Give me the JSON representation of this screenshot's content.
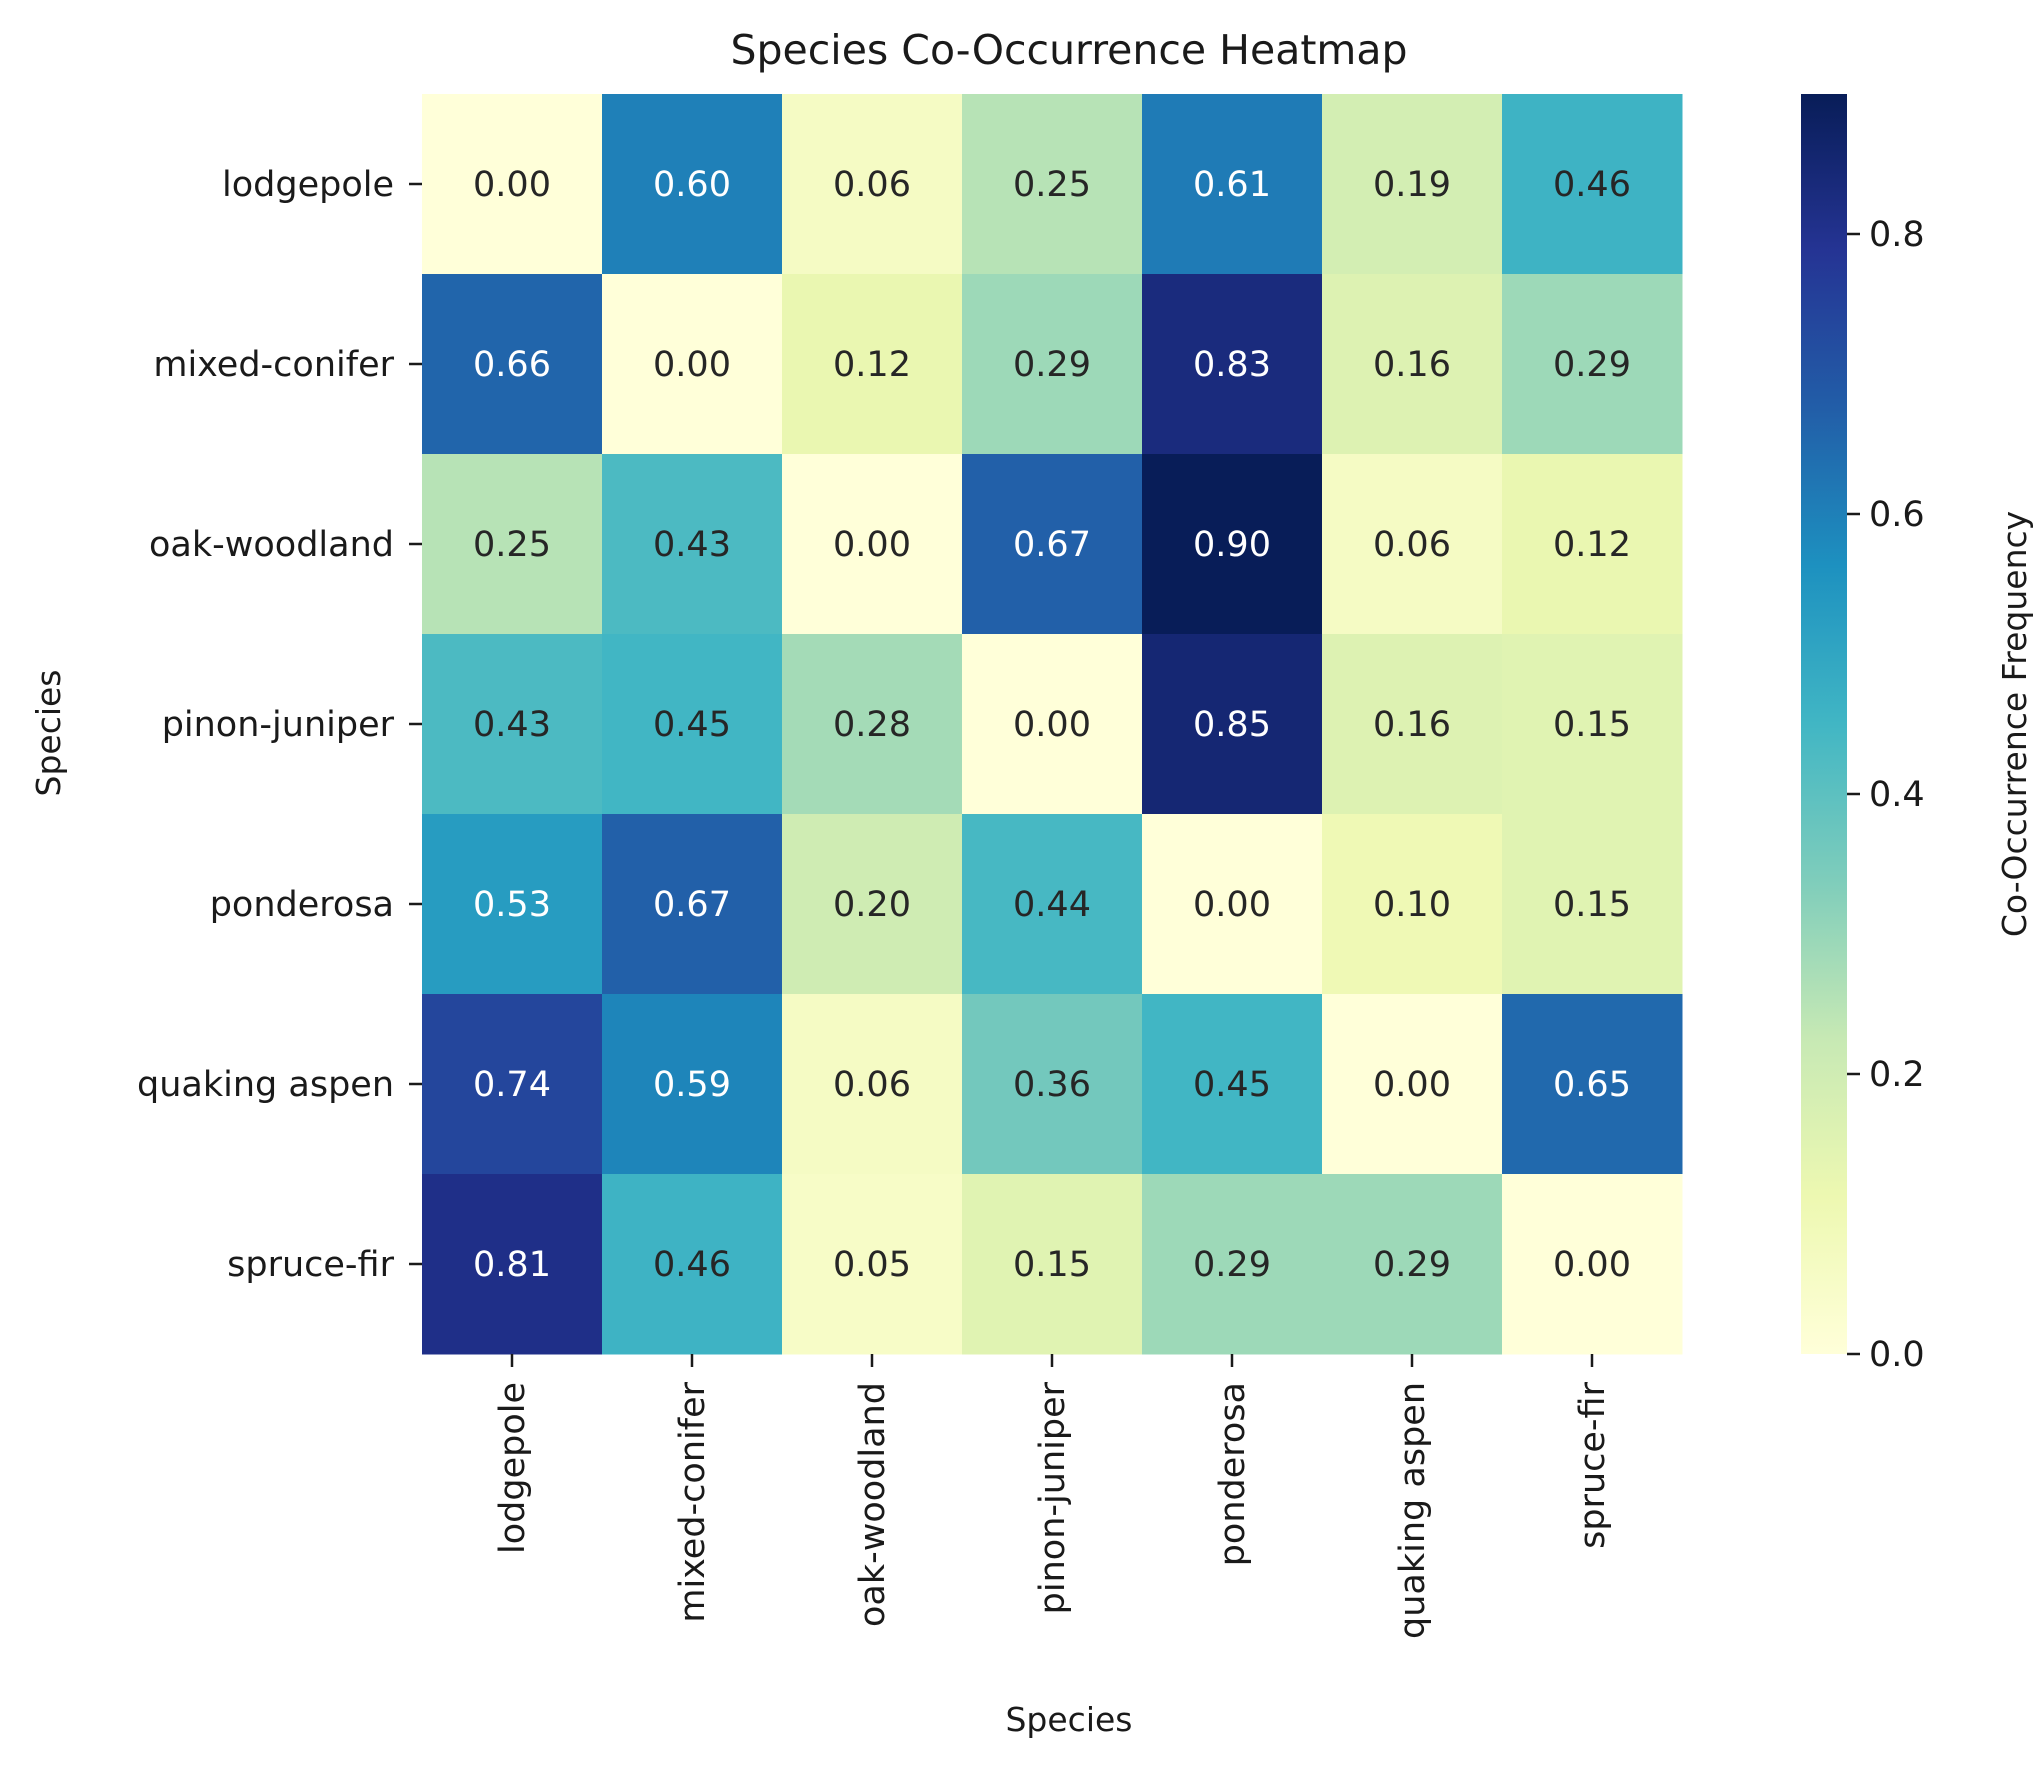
{
  "chart_data": {
    "type": "heatmap",
    "title": "Species Co-Occurrence Heatmap",
    "xlabel": "Species",
    "ylabel": "Species",
    "x_categories": [
      "lodgepole",
      "mixed-conifer",
      "oak-woodland",
      "pinon-juniper",
      "ponderosa",
      "quaking aspen",
      "spruce-fir"
    ],
    "y_categories": [
      "lodgepole",
      "mixed-conifer",
      "oak-woodland",
      "pinon-juniper",
      "ponderosa",
      "quaking aspen",
      "spruce-fir"
    ],
    "values": [
      [
        0.0,
        0.6,
        0.06,
        0.25,
        0.61,
        0.19,
        0.46
      ],
      [
        0.66,
        0.0,
        0.12,
        0.29,
        0.83,
        0.16,
        0.29
      ],
      [
        0.25,
        0.43,
        0.0,
        0.67,
        0.9,
        0.06,
        0.12
      ],
      [
        0.43,
        0.45,
        0.28,
        0.0,
        0.85,
        0.16,
        0.15
      ],
      [
        0.53,
        0.67,
        0.2,
        0.44,
        0.0,
        0.1,
        0.15
      ],
      [
        0.74,
        0.59,
        0.06,
        0.36,
        0.45,
        0.0,
        0.65
      ],
      [
        0.81,
        0.46,
        0.05,
        0.15,
        0.29,
        0.29,
        0.0
      ]
    ],
    "value_format": "0.00",
    "colormap": "YlGnBu",
    "colorbar": {
      "label": "Co-Occurrence Frequency",
      "range": [
        0.0,
        0.9
      ],
      "ticks": [
        0.0,
        0.2,
        0.4,
        0.6,
        0.8
      ],
      "tick_labels": [
        "0.0",
        "0.2",
        "0.4",
        "0.6",
        "0.8"
      ]
    },
    "grid": false
  }
}
